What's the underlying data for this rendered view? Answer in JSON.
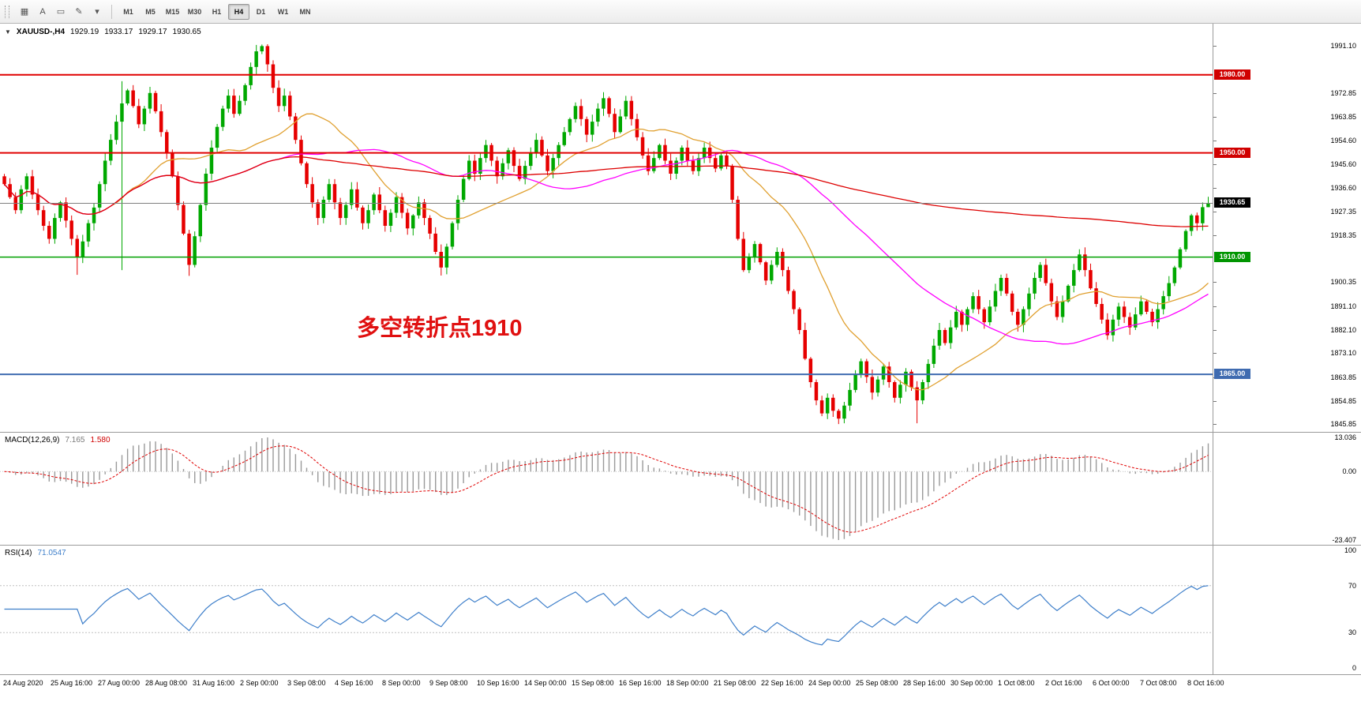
{
  "toolbar": {
    "left_icons": [
      {
        "name": "chart-window-icon",
        "glyph": "▦"
      },
      {
        "name": "arrow-tool-icon",
        "glyph": "A"
      },
      {
        "name": "text-tool-icon",
        "glyph": "▭"
      },
      {
        "name": "draw-tools-icon",
        "glyph": "✎"
      },
      {
        "name": "tools-dropdown-caret-icon",
        "glyph": "▾"
      }
    ],
    "timeframes": [
      "M1",
      "M5",
      "M15",
      "M30",
      "H1",
      "H4",
      "D1",
      "W1",
      "MN"
    ],
    "active_timeframe": "H4"
  },
  "chart": {
    "symbol_caret": "▼",
    "symbol_period": "XAUUSD-,H4",
    "ohlc": {
      "open": "1929.19",
      "high": "1933.17",
      "low": "1929.17",
      "close": "1930.65"
    },
    "annotation": {
      "text": "多空转折点1910",
      "color": "#e01010"
    },
    "price_scale": {
      "top": 1999.6,
      "bottom": 1842.9
    },
    "axis_ticks": [
      1991.1,
      1972.85,
      1963.85,
      1954.6,
      1945.6,
      1936.6,
      1927.35,
      1918.35,
      1900.35,
      1891.1,
      1882.1,
      1873.1,
      1863.85,
      1854.85,
      1845.85
    ],
    "levels": [
      {
        "price": 1980.0,
        "label": "1980.00",
        "color": "#e00000",
        "badge": "#d00000",
        "width": 2
      },
      {
        "price": 1950.0,
        "label": "1950.00",
        "color": "#e00000",
        "badge": "#d00000",
        "width": 2
      },
      {
        "price": 1910.0,
        "label": "1910.00",
        "color": "#00a000",
        "badge": "#009500",
        "width": 1.5
      },
      {
        "price": 1865.0,
        "label": "1865.00",
        "color": "#3f6bb0",
        "badge": "#3f6bb0",
        "width": 2
      }
    ],
    "current_price": {
      "value": 1930.65,
      "label": "1930.65",
      "line_color": "#808080",
      "badge": "#000000"
    }
  },
  "chart_data": {
    "type": "candlestick",
    "symbol": "XAUUSD",
    "timeframe": "H4",
    "title": "XAUUSD-,H4 1929.19 1933.17 1929.17 1930.65",
    "ylim": [
      1845.85,
      1991.1
    ],
    "first_open": 1941,
    "closes": [
      1938,
      1933,
      1928,
      1936,
      1941,
      1934,
      1928,
      1922,
      1917,
      1925,
      1931,
      1924,
      1917,
      1910,
      1916,
      1923,
      1929,
      1938,
      1947,
      1955,
      1962,
      1969,
      1974,
      1968,
      1961,
      1967,
      1973,
      1966,
      1958,
      1950,
      1941,
      1930,
      1919,
      1907,
      1918,
      1930,
      1942,
      1952,
      1960,
      1967,
      1972,
      1965,
      1970,
      1976,
      1983,
      1989,
      1991,
      1984,
      1975,
      1968,
      1972,
      1964,
      1955,
      1946,
      1938,
      1931,
      1925,
      1932,
      1938,
      1931,
      1925,
      1930,
      1936,
      1929,
      1923,
      1928,
      1934,
      1928,
      1922,
      1927,
      1933,
      1927,
      1921,
      1926,
      1931,
      1925,
      1919,
      1912,
      1906,
      1914,
      1923,
      1932,
      1940,
      1947,
      1942,
      1948,
      1953,
      1947,
      1941,
      1946,
      1951,
      1945,
      1940,
      1945,
      1950,
      1955,
      1949,
      1943,
      1948,
      1953,
      1958,
      1963,
      1968,
      1963,
      1957,
      1962,
      1967,
      1971,
      1965,
      1958,
      1964,
      1970,
      1963,
      1956,
      1949,
      1943,
      1948,
      1953,
      1947,
      1942,
      1947,
      1952,
      1947,
      1943,
      1948,
      1952,
      1948,
      1944,
      1949,
      1945,
      1932,
      1917,
      1905,
      1910,
      1915,
      1908,
      1901,
      1907,
      1912,
      1905,
      1897,
      1890,
      1882,
      1871,
      1862,
      1855,
      1850,
      1856,
      1851,
      1848,
      1853,
      1859,
      1865,
      1870,
      1864,
      1858,
      1863,
      1868,
      1862,
      1856,
      1861,
      1866,
      1860,
      1855,
      1862,
      1869,
      1876,
      1882,
      1877,
      1883,
      1889,
      1884,
      1890,
      1895,
      1890,
      1885,
      1891,
      1897,
      1902,
      1896,
      1889,
      1884,
      1890,
      1896,
      1902,
      1907,
      1900,
      1893,
      1887,
      1893,
      1899,
      1905,
      1911,
      1905,
      1898,
      1892,
      1886,
      1880,
      1886,
      1891,
      1887,
      1883,
      1888,
      1893,
      1889,
      1885,
      1890,
      1895,
      1900,
      1906,
      1913,
      1920,
      1926,
      1923,
      1929.17,
      1930.65
    ],
    "wick_overrides": {
      "13": {
        "l": 1903.2
      },
      "21": {
        "h": 1977.5,
        "l": 1905.0
      },
      "33": {
        "l": 1902.8
      },
      "46": {
        "h": 1991.6
      },
      "78": {
        "l": 1902.9
      },
      "149": {
        "l": 1845.9
      },
      "163": {
        "l": 1846.2
      },
      "215": {
        "h": 1933.17,
        "l": 1929.17
      }
    },
    "colors": {
      "up": "#00a800",
      "down": "#e60000"
    },
    "moving_averages": [
      {
        "name": "ma-fast",
        "period": 20,
        "color": "#e0a030"
      },
      {
        "name": "ma-mid",
        "period": 50,
        "color": "#ff00ff"
      },
      {
        "name": "ma-slow",
        "period": 200,
        "color": "#dd0000"
      }
    ],
    "macd": {
      "label": "MACD(12,26,9)",
      "main_value": "7.165",
      "signal_value": "1.580",
      "fast": 12,
      "slow": 26,
      "signal": 9,
      "axis": [
        "13.036",
        "0.00",
        "-23.407"
      ],
      "histogram_color": "#9a9a9a",
      "signal_color": "#e00000"
    },
    "rsi": {
      "label": "RSI(14)",
      "value": "71.0547",
      "period": 14,
      "axis": [
        100,
        70,
        30,
        0
      ],
      "levels": [
        70,
        30
      ],
      "color": "#3e7fca"
    },
    "x_labels": [
      "24 Aug 2020",
      "25 Aug 16:00",
      "27 Aug 00:00",
      "28 Aug 08:00",
      "31 Aug 16:00",
      "2 Sep 00:00",
      "3 Sep 08:00",
      "4 Sep 16:00",
      "8 Sep 00:00",
      "9 Sep 08:00",
      "10 Sep 16:00",
      "14 Sep 00:00",
      "15 Sep 08:00",
      "16 Sep 16:00",
      "18 Sep 00:00",
      "21 Sep 08:00",
      "22 Sep 16:00",
      "24 Sep 00:00",
      "25 Sep 08:00",
      "28 Sep 16:00",
      "30 Sep 00:00",
      "1 Oct 08:00",
      "2 Oct 16:00",
      "6 Oct 00:00",
      "7 Oct 08:00",
      "8 Oct 16:00"
    ]
  }
}
